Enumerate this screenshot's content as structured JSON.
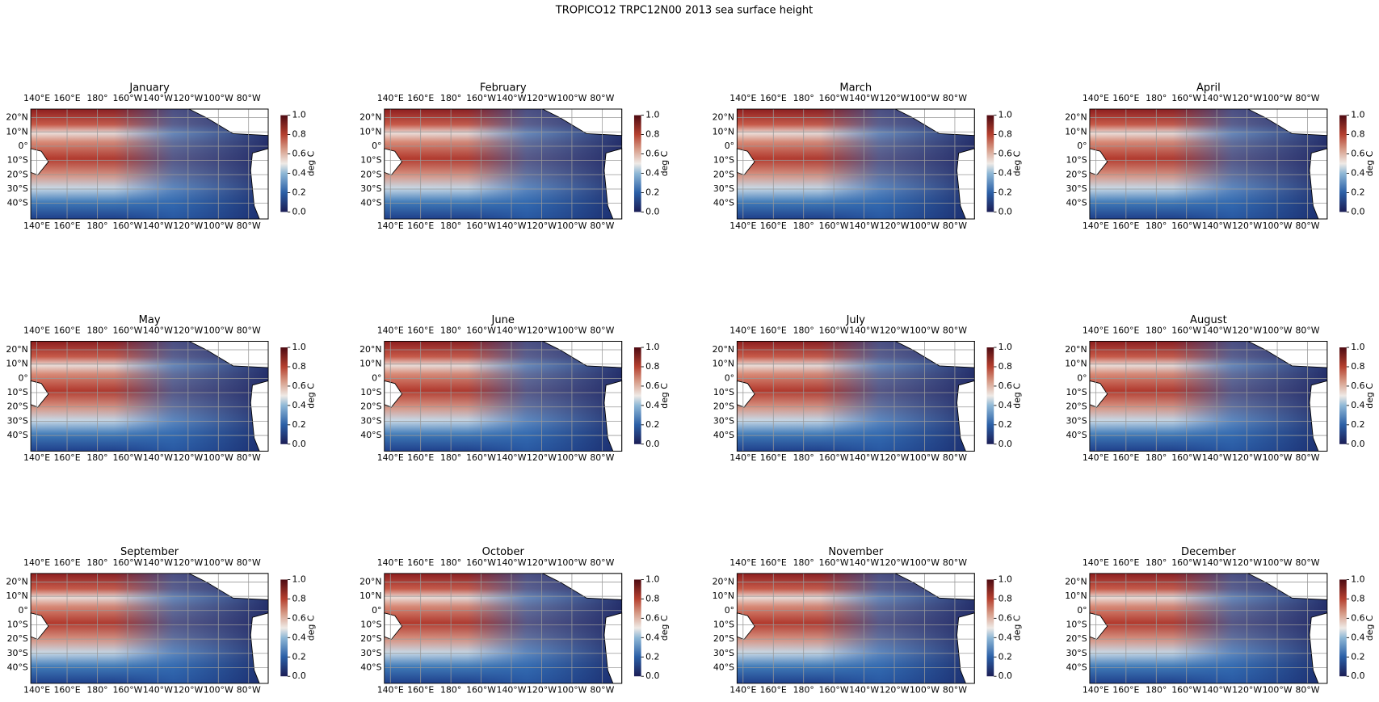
{
  "title": "TROPICO12 TRPC12N00 2013 sea surface height",
  "panels": [
    {
      "title": "January"
    },
    {
      "title": "February"
    },
    {
      "title": "March"
    },
    {
      "title": "April"
    },
    {
      "title": "May"
    },
    {
      "title": "June"
    },
    {
      "title": "July"
    },
    {
      "title": "August"
    },
    {
      "title": "September"
    },
    {
      "title": "October"
    },
    {
      "title": "November"
    },
    {
      "title": "December"
    }
  ],
  "xlim": [
    136,
    293
  ],
  "ylim": [
    -51,
    26
  ],
  "lon_ticks": [
    {
      "value": 140,
      "label": "140°E"
    },
    {
      "value": 160,
      "label": "160°E"
    },
    {
      "value": 180,
      "label": "180°"
    },
    {
      "value": 200,
      "label": "160°W"
    },
    {
      "value": 220,
      "label": "140°W"
    },
    {
      "value": 240,
      "label": "120°W"
    },
    {
      "value": 260,
      "label": "100°W"
    },
    {
      "value": 280,
      "label": "80°W"
    }
  ],
  "lat_ticks": [
    {
      "value": 20,
      "label": "20°N"
    },
    {
      "value": 10,
      "label": "10°N"
    },
    {
      "value": 0,
      "label": "0°"
    },
    {
      "value": -10,
      "label": "10°S"
    },
    {
      "value": -20,
      "label": "20°S"
    },
    {
      "value": -30,
      "label": "30°S"
    },
    {
      "value": -40,
      "label": "40°S"
    }
  ],
  "colorbar": {
    "label": "deg C",
    "lim": [
      0,
      1
    ],
    "ticks": [
      {
        "value": 0,
        "label": "0.0"
      },
      {
        "value": 0.2,
        "label": "0.2"
      },
      {
        "value": 0.4,
        "label": "0.4"
      },
      {
        "value": 0.6,
        "label": "0.6"
      },
      {
        "value": 0.8,
        "label": "0.8"
      },
      {
        "value": 1,
        "label": "1.0"
      }
    ]
  }
}
